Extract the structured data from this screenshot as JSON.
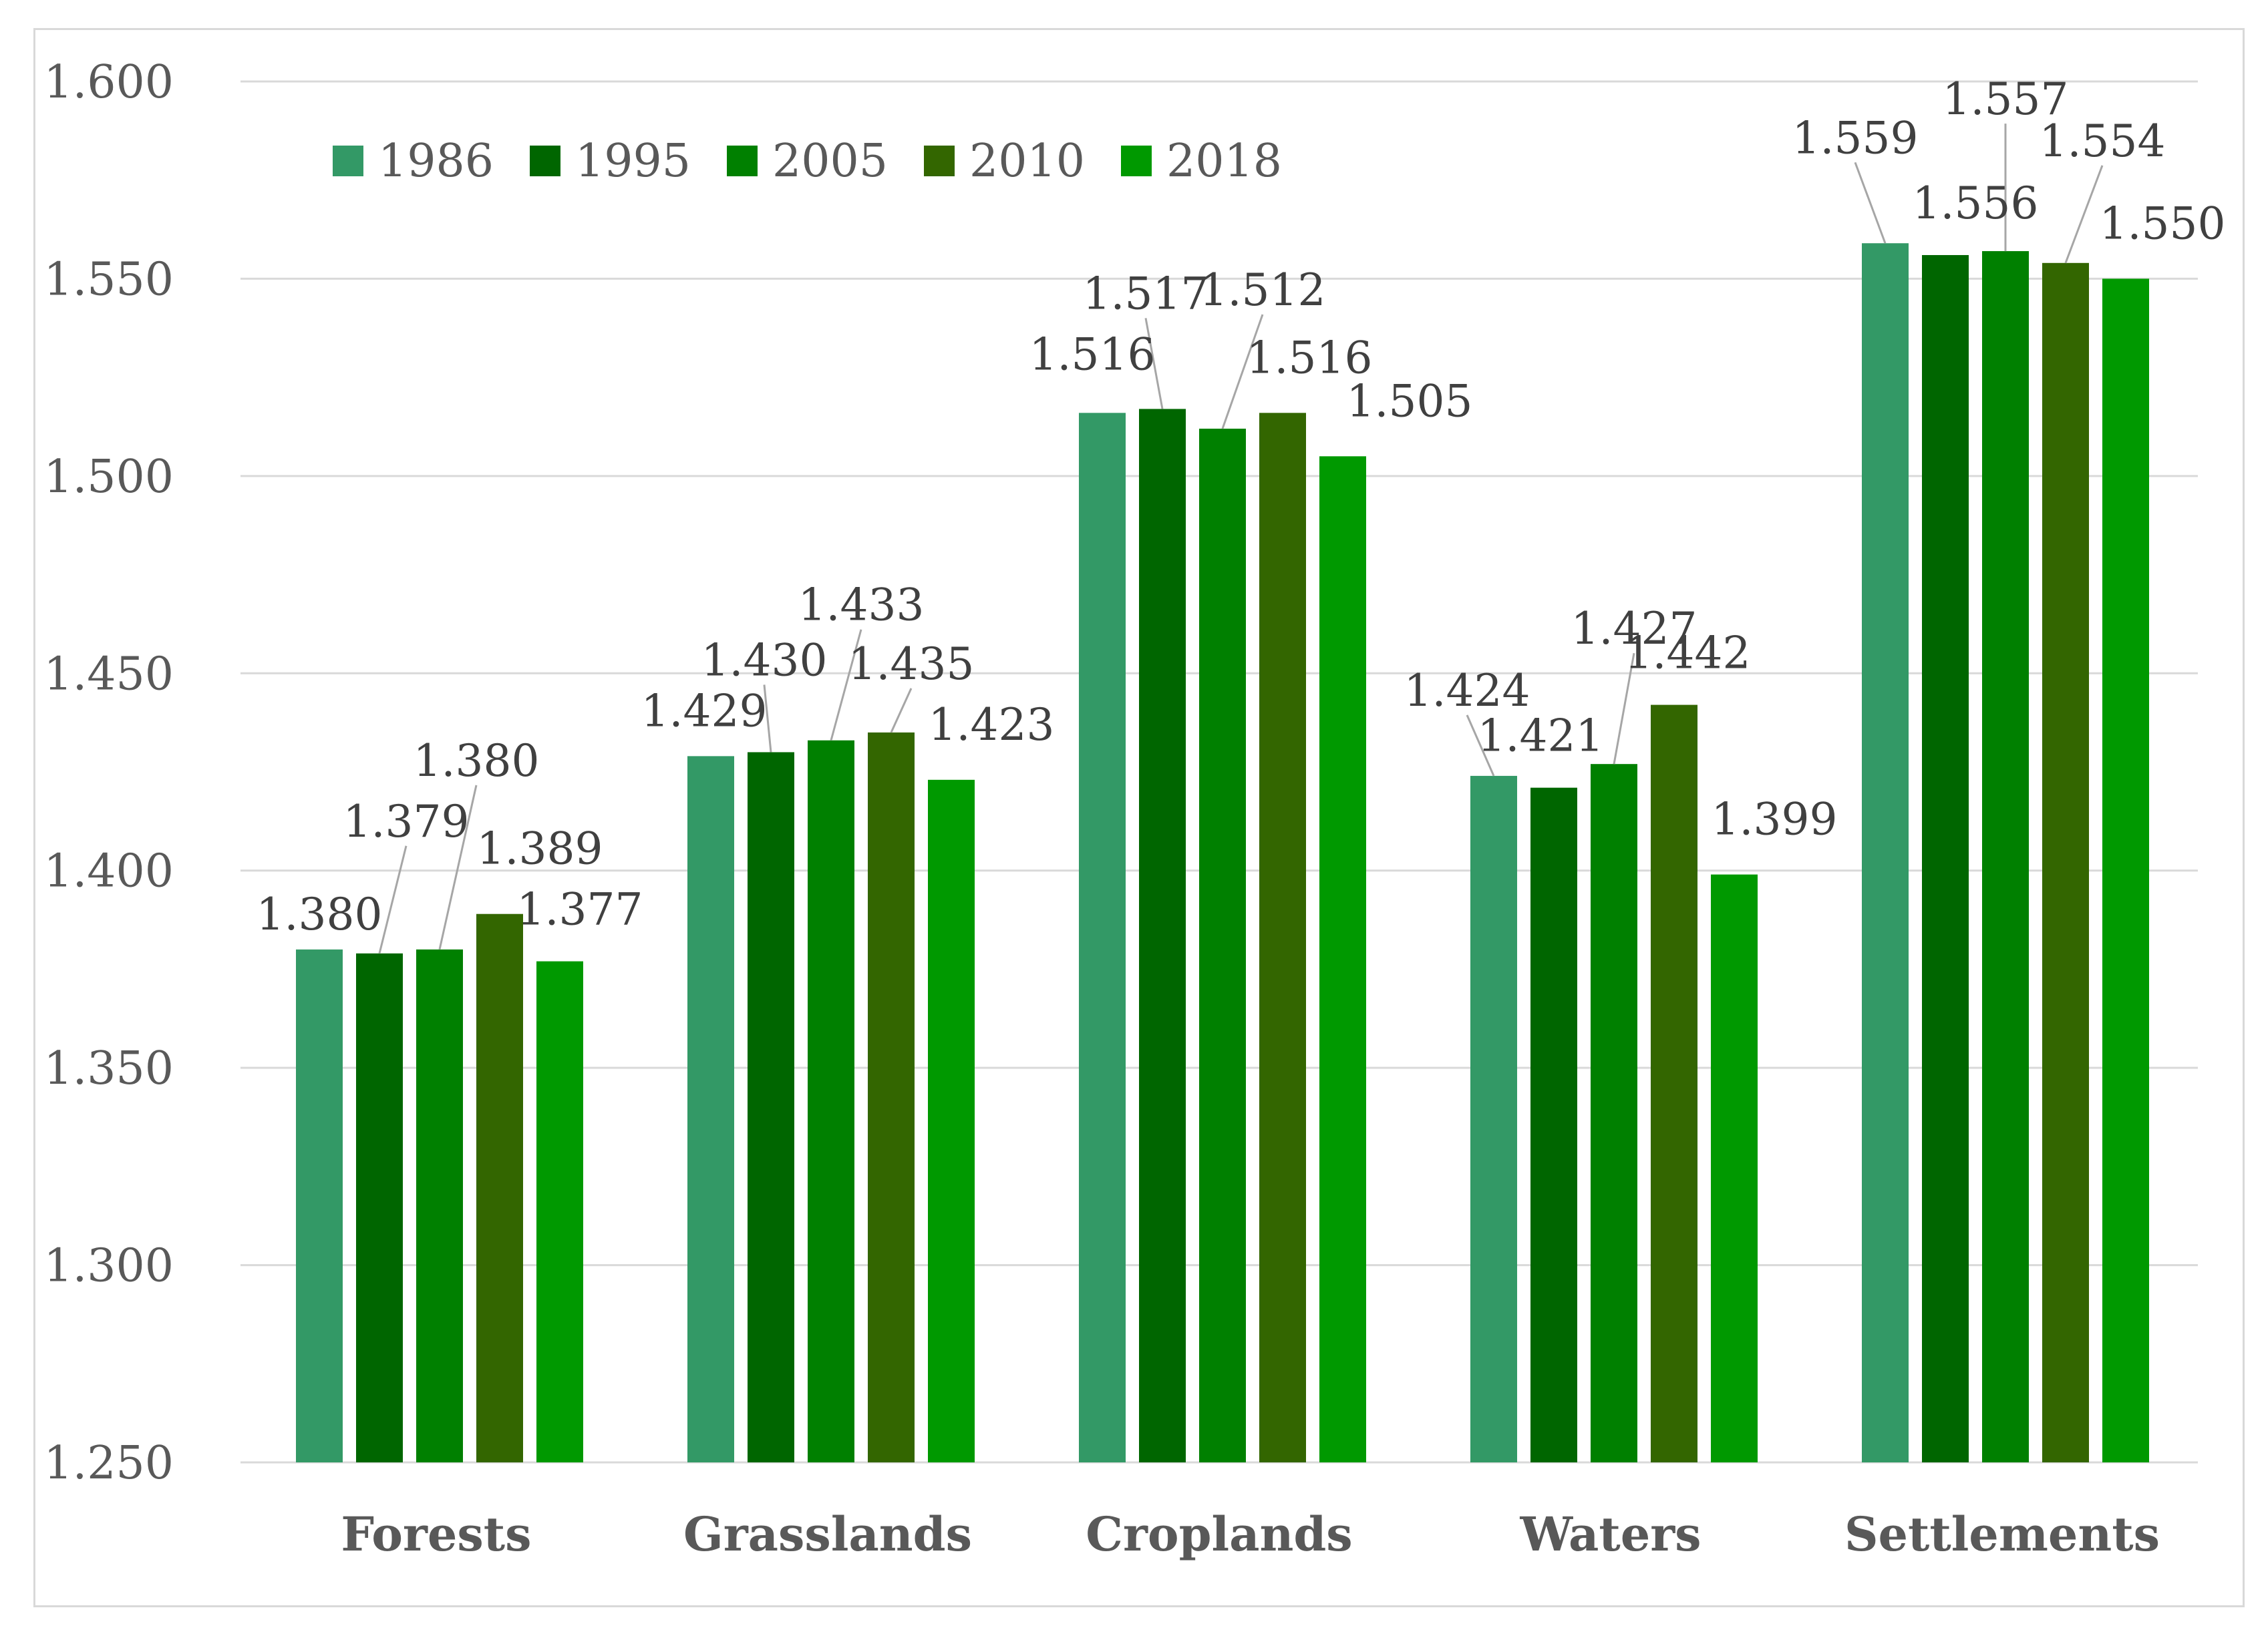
{
  "chart_data": {
    "type": "bar",
    "title": "",
    "xlabel": "",
    "ylabel": "",
    "ylim": [
      1.25,
      1.6
    ],
    "yticks": [
      "1.250",
      "1.300",
      "1.350",
      "1.400",
      "1.450",
      "1.500",
      "1.550",
      "1.600"
    ],
    "ytick_values": [
      1.25,
      1.3,
      1.35,
      1.4,
      1.45,
      1.5,
      1.55,
      1.6
    ],
    "grid": true,
    "legend_position": "top-left",
    "categories": [
      "Forests",
      "Grasslands",
      "Croplands",
      "Waters",
      "Settlements"
    ],
    "series": [
      {
        "name": "1986",
        "color": "#339966",
        "values": [
          1.38,
          1.429,
          1.516,
          1.424,
          1.559
        ],
        "labels": [
          "1.380",
          "1.429",
          "1.516",
          "1.424",
          "1.559"
        ]
      },
      {
        "name": "1995",
        "color": "#006600",
        "values": [
          1.379,
          1.43,
          1.517,
          1.421,
          1.556
        ],
        "labels": [
          "1.379",
          "1.430",
          "1.517",
          "1.421",
          "1.556"
        ]
      },
      {
        "name": "2005",
        "color": "#008000",
        "values": [
          1.38,
          1.433,
          1.512,
          1.427,
          1.557
        ],
        "labels": [
          "1.380",
          "1.433",
          "1.512",
          "1.427",
          "1.557"
        ]
      },
      {
        "name": "2010",
        "color": "#336600",
        "values": [
          1.389,
          1.435,
          1.516,
          1.442,
          1.554
        ],
        "labels": [
          "1.389",
          "1.435",
          "1.516",
          "1.442",
          "1.554"
        ]
      },
      {
        "name": "2018",
        "color": "#009900",
        "values": [
          1.377,
          1.423,
          1.505,
          1.399,
          1.55
        ],
        "labels": [
          "1.377",
          "1.423",
          "1.505",
          "1.399",
          "1.550"
        ]
      }
    ]
  }
}
